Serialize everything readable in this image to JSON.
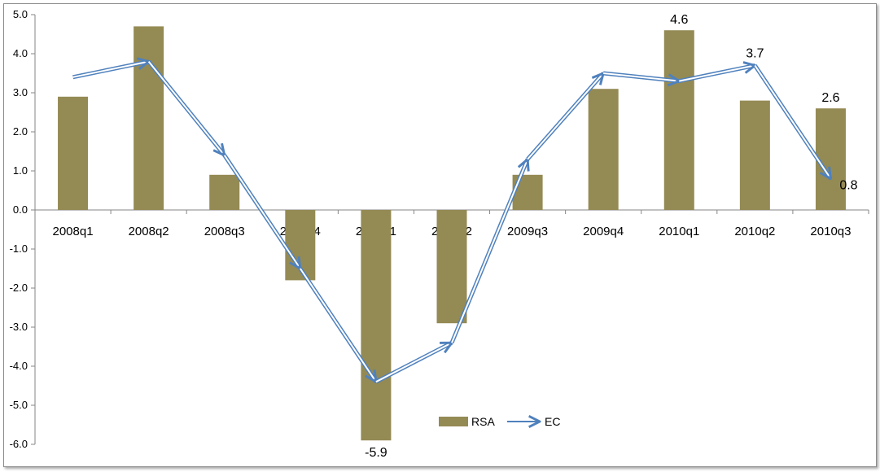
{
  "chart_data": {
    "type": "bar",
    "categories": [
      "2008q1",
      "2008q2",
      "2008q3",
      "2008q4",
      "2009q1",
      "2009q2",
      "2009q3",
      "2009q4",
      "2010q1",
      "2010q2",
      "2010q3"
    ],
    "series": [
      {
        "name": "RSA",
        "type": "bar",
        "color": "#948a54",
        "values": [
          2.9,
          4.7,
          0.9,
          -1.8,
          -5.9,
          -2.9,
          0.9,
          3.1,
          4.6,
          2.8,
          2.6
        ]
      },
      {
        "name": "EC",
        "type": "line",
        "color": "#4f81bd",
        "values": [
          3.4,
          3.8,
          1.4,
          -1.5,
          -4.4,
          -3.4,
          1.3,
          3.5,
          3.3,
          3.7,
          0.8
        ]
      }
    ],
    "data_labels": [
      {
        "text": "4.6",
        "series": "RSA",
        "category": "2010q1"
      },
      {
        "text": "2.6",
        "series": "RSA",
        "category": "2010q3"
      },
      {
        "text": "-5.9",
        "series": "RSA",
        "category": "2009q1"
      },
      {
        "text": "3.7",
        "series": "EC",
        "category": "2010q2"
      },
      {
        "text": "0.8",
        "series": "EC",
        "category": "2010q3"
      }
    ],
    "yticks": [
      "5.0",
      "4.0",
      "3.0",
      "2.0",
      "1.0",
      "0.0",
      "-1.0",
      "-2.0",
      "-3.0",
      "-4.0",
      "-5.0",
      "-6.0"
    ],
    "ylim": [
      -6,
      5
    ],
    "legend_position": "bottom-center",
    "grid": false
  }
}
